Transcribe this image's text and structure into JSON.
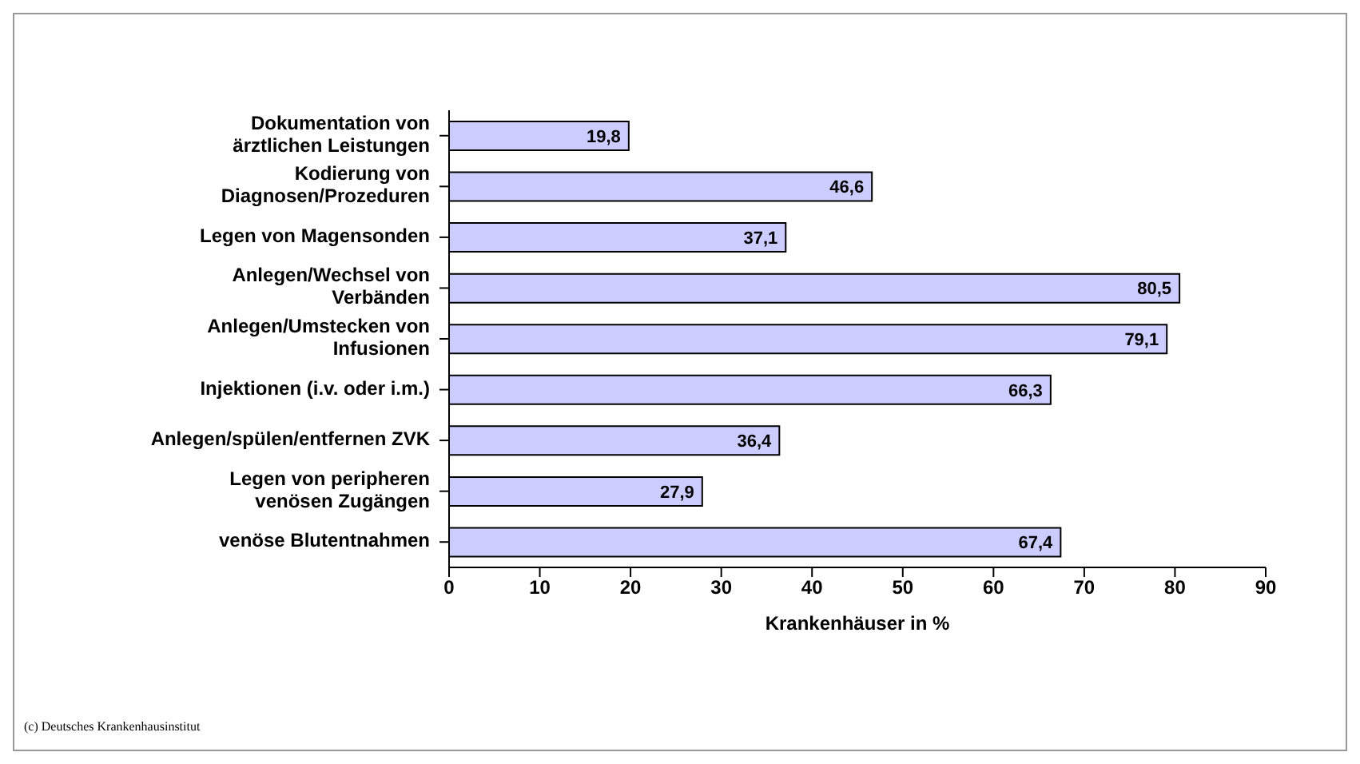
{
  "chart_data": {
    "type": "bar",
    "orientation": "horizontal",
    "xlabel": "Krankenhäuser in %",
    "categories": [
      "Dokumentation von ärztlichen Leistungen",
      "Kodierung von Diagnosen/Prozeduren",
      "Legen von Magensonden",
      "Anlegen/Wechsel von Verbänden",
      "Anlegen/Umstecken von Infusionen",
      "Injektionen (i.v. oder i.m.)",
      "Anlegen/spülen/entfernen ZVK",
      "Legen von peripheren venösen Zugängen",
      "venöse Blutentnahmen"
    ],
    "values": [
      19.8,
      46.6,
      37.1,
      80.5,
      79.1,
      66.3,
      36.4,
      27.9,
      67.4
    ],
    "value_labels": [
      "19,8",
      "46,6",
      "37,1",
      "80,5",
      "79,1",
      "66,3",
      "36,4",
      "27,9",
      "67,4"
    ],
    "color": "#ccccff",
    "xlim": [
      0,
      90
    ],
    "xticks": [
      0,
      10,
      20,
      30,
      40,
      50,
      60,
      70,
      80,
      90
    ],
    "annotations": [
      "(c) Deutsches Krankenhausinstitut"
    ]
  }
}
